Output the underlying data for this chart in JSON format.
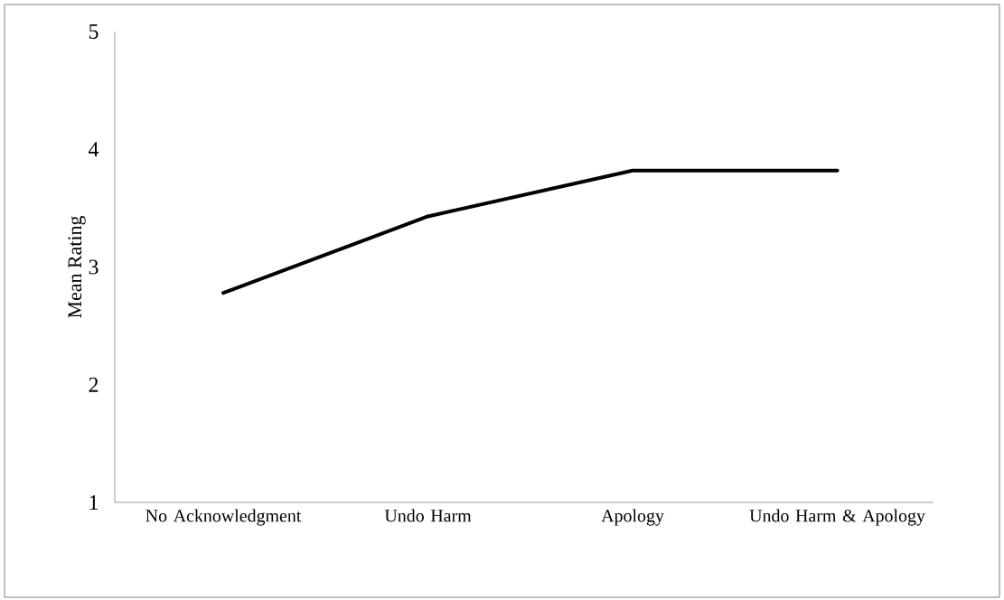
{
  "chart_data": {
    "type": "line",
    "ylabel": "Mean Rating",
    "categories": [
      "No Acknowledgment",
      "Undo Harm",
      "Apology",
      "Undo Harm & Apology"
    ],
    "series": [
      {
        "color": "#000000",
        "values": [
          2.78,
          3.43,
          3.82,
          3.82
        ]
      }
    ],
    "ylim": [
      1,
      5
    ],
    "yticks": [
      1,
      2,
      3,
      4,
      5
    ],
    "grid": false,
    "marker": "none",
    "line_style": "solid"
  }
}
